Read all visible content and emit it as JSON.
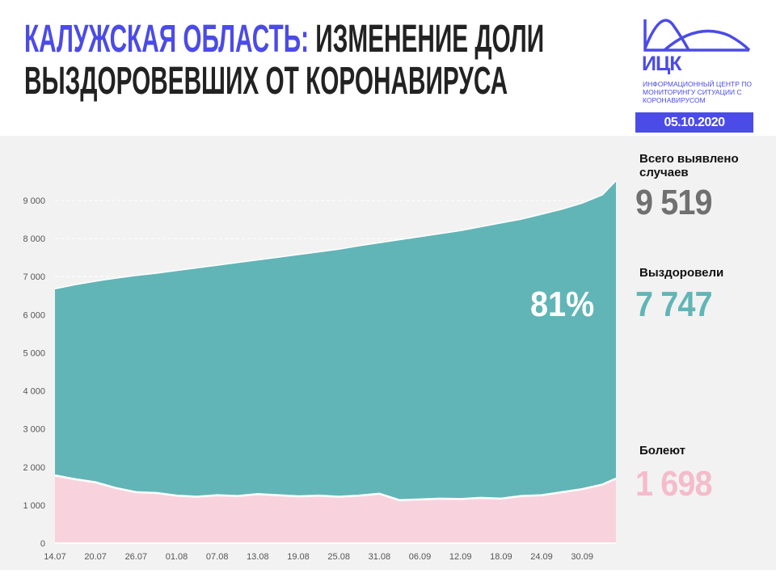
{
  "header": {
    "title_region": "КАЛУЖСКАЯ ОБЛАСТЬ:",
    "title_rest": "ИЗМЕНЕНИЕ ДОЛИ",
    "title_line2": "ВЫЗДОРОВЕВШИХ ОТ КОРОНАВИРУСА",
    "logo_name": "ИЦК",
    "logo_subtitle": "ИНФОРМАЦИОННЫЙ ЦЕНТР ПО МОНИТОРИНГУ СИТУАЦИИ С КОРОНАВИРУСОМ",
    "date": "05.10.2020"
  },
  "stats": {
    "total_label": "Всего выявлено случаев",
    "total_value": "9 519",
    "recovered_label": "Выздоровели",
    "recovered_value": "7 747",
    "recovered_share": "81%",
    "sick_label": "Болеют",
    "sick_value": "1 698"
  },
  "colors": {
    "accent": "#4b4be8",
    "recovered": "#62b5b6",
    "sick": "#f8d3de",
    "total_text": "#707070",
    "sick_text": "#f4bccb"
  },
  "chart_data": {
    "type": "area",
    "title": "Изменение доли выздоровевших от коронавируса",
    "x_ticks": [
      "14.07",
      "20.07",
      "26.07",
      "01.08",
      "07.08",
      "13.08",
      "19.08",
      "25.08",
      "31.08",
      "06.09",
      "12.09",
      "18.09",
      "24.09",
      "30.09"
    ],
    "y_ticks": [
      "0",
      "1 000",
      "2 000",
      "3 000",
      "4 000",
      "5 000",
      "6 000",
      "7 000",
      "8 000",
      "9 000"
    ],
    "ylim": [
      0,
      9000
    ],
    "x_days": [
      0,
      3,
      6,
      9,
      12,
      15,
      18,
      21,
      24,
      27,
      30,
      33,
      36,
      39,
      42,
      45,
      48,
      51,
      54,
      57,
      60,
      63,
      66,
      69,
      72,
      75,
      78,
      81,
      83
    ],
    "series": [
      {
        "name": "Всего выявлено",
        "values": [
          6680,
          6790,
          6880,
          6960,
          7030,
          7090,
          7160,
          7230,
          7300,
          7370,
          7440,
          7510,
          7580,
          7650,
          7720,
          7810,
          7890,
          7970,
          8050,
          8130,
          8210,
          8310,
          8410,
          8510,
          8640,
          8770,
          8930,
          9150,
          9519
        ]
      },
      {
        "name": "Болеют",
        "values": [
          1780,
          1680,
          1600,
          1450,
          1340,
          1320,
          1250,
          1220,
          1260,
          1240,
          1290,
          1260,
          1230,
          1250,
          1220,
          1250,
          1300,
          1130,
          1150,
          1170,
          1160,
          1190,
          1170,
          1240,
          1260,
          1340,
          1420,
          1540,
          1698
        ]
      }
    ]
  }
}
